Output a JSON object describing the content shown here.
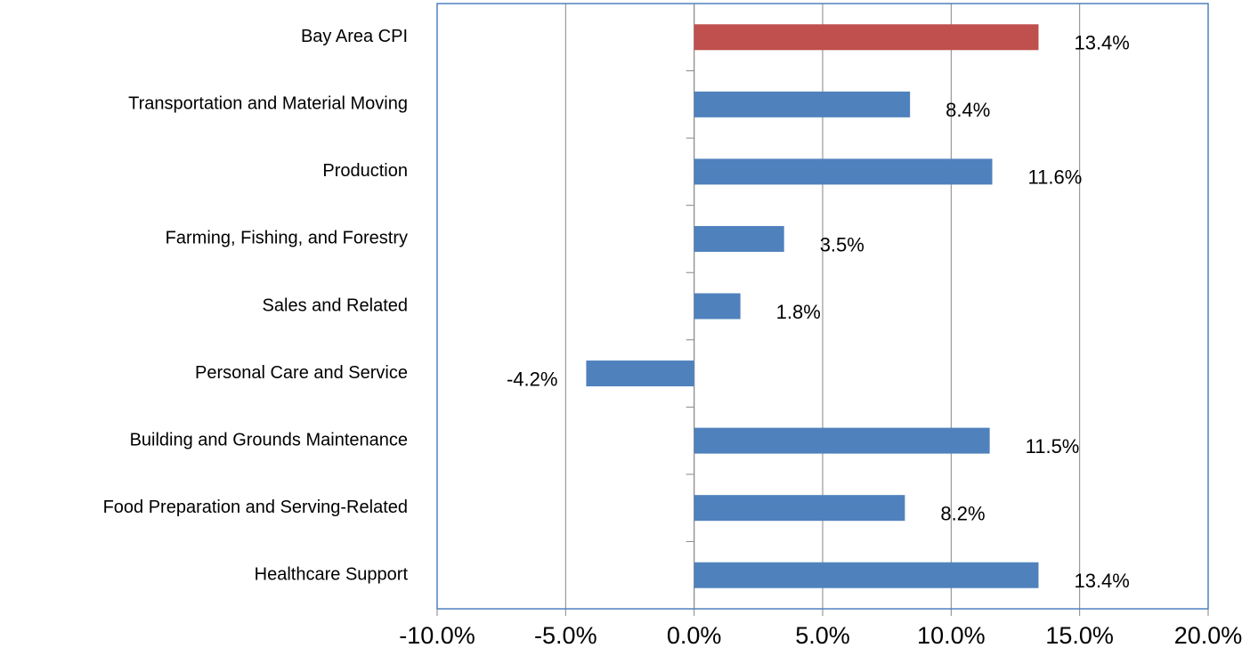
{
  "chart_data": {
    "type": "bar",
    "orientation": "horizontal",
    "categories": [
      "Bay Area CPI",
      "Transportation and Material Moving",
      "Production",
      "Farming, Fishing, and Forestry",
      "Sales and Related",
      "Personal Care and Service",
      "Building and Grounds Maintenance",
      "Food Preparation and Serving-Related",
      "Healthcare Support"
    ],
    "values": [
      13.4,
      8.4,
      11.6,
      3.5,
      1.8,
      -4.2,
      11.5,
      8.2,
      13.4
    ],
    "value_labels": [
      "13.4%",
      "8.4%",
      "11.6%",
      "3.5%",
      "1.8%",
      "-4.2%",
      "11.5%",
      "8.2%",
      "13.4%"
    ],
    "colors": [
      "#c0504d",
      "#4f81bd",
      "#4f81bd",
      "#4f81bd",
      "#4f81bd",
      "#4f81bd",
      "#4f81bd",
      "#4f81bd",
      "#4f81bd"
    ],
    "xlim": [
      -10,
      20
    ],
    "xticks": [
      {
        "value": -10,
        "label": "-10.0%"
      },
      {
        "value": -5,
        "label": "-5.0%"
      },
      {
        "value": 0,
        "label": "0.0%"
      },
      {
        "value": 5,
        "label": "5.0%"
      },
      {
        "value": 10,
        "label": "10.0%"
      },
      {
        "value": 15,
        "label": "15.0%"
      },
      {
        "value": 20,
        "label": "20.0%"
      }
    ],
    "grid": true
  }
}
